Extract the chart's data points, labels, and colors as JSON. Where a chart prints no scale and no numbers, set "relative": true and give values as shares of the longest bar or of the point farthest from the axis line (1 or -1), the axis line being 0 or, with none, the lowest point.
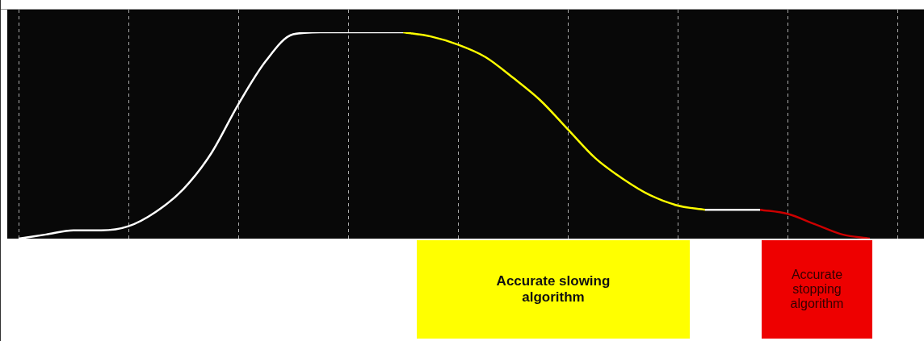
{
  "chart_data": {
    "type": "line",
    "relative": true,
    "grid": "x",
    "legend": false,
    "marker": "none",
    "categories": [
      null,
      null,
      null,
      null,
      null,
      null,
      null,
      null,
      null,
      null,
      null,
      null,
      null,
      null,
      null,
      null,
      null,
      null,
      null,
      null,
      null,
      null,
      null,
      null,
      null,
      null,
      null,
      null,
      null,
      null,
      null,
      null
    ],
    "series": [
      {
        "color": "#ffffff",
        "values": [
          0,
          0.02,
          0.04,
          0.04,
          0.06,
          0.13,
          0.24,
          0.41,
          0.65,
          0.86,
          0.99,
          1,
          1,
          1,
          1,
          null,
          null,
          null,
          null,
          null,
          null,
          null,
          null,
          null,
          null,
          null,
          null,
          null,
          null,
          null,
          null,
          null
        ]
      },
      {
        "color": "#ffff00",
        "values": [
          null,
          null,
          null,
          null,
          null,
          null,
          null,
          null,
          null,
          null,
          null,
          null,
          null,
          null,
          1,
          0.98,
          0.94,
          0.88,
          0.78,
          0.67,
          0.53,
          0.39,
          0.29,
          0.21,
          0.16,
          0.14,
          null,
          null,
          null,
          null,
          null,
          null
        ]
      },
      {
        "color": "#ffffff",
        "values": [
          null,
          null,
          null,
          null,
          null,
          null,
          null,
          null,
          null,
          null,
          null,
          null,
          null,
          null,
          null,
          null,
          null,
          null,
          null,
          null,
          null,
          null,
          null,
          null,
          null,
          0.14,
          0.14,
          0.14,
          null,
          null,
          null,
          null
        ]
      },
      {
        "color": "#cc0000",
        "values": [
          null,
          null,
          null,
          null,
          null,
          null,
          null,
          null,
          null,
          null,
          null,
          null,
          null,
          null,
          null,
          null,
          null,
          null,
          null,
          null,
          null,
          null,
          null,
          null,
          null,
          null,
          null,
          0.14,
          0.12,
          0.07,
          0.02,
          0
        ]
      }
    ],
    "annotations": [
      "Accurate slowing algorithm",
      "Accurate stopping algorithm"
    ]
  }
}
